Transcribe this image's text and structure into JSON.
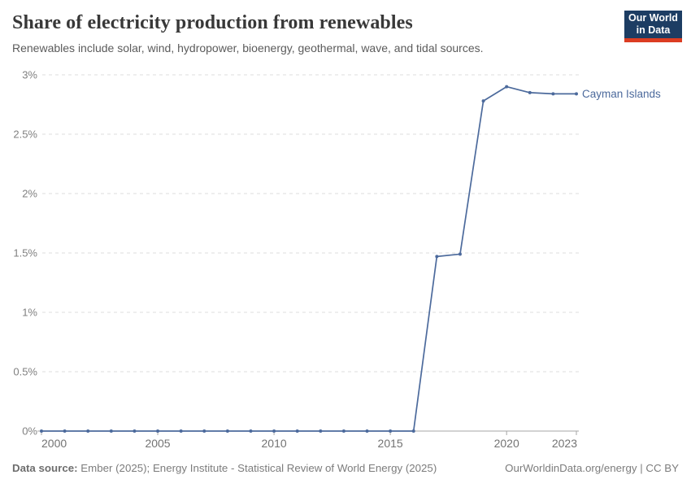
{
  "header": {
    "title": "Share of electricity production from renewables",
    "subtitle": "Renewables include solar, wind, hydropower, bioenergy, geothermal, wave, and tidal sources.",
    "logo": {
      "line1": "Our World",
      "line2": "in Data"
    }
  },
  "chart_data": {
    "type": "line",
    "title": "Share of electricity production from renewables",
    "x": [
      2000,
      2001,
      2002,
      2003,
      2004,
      2005,
      2006,
      2007,
      2008,
      2009,
      2010,
      2011,
      2012,
      2013,
      2014,
      2015,
      2016,
      2017,
      2018,
      2019,
      2020,
      2021,
      2022,
      2023
    ],
    "series": [
      {
        "name": "Cayman Islands",
        "color": "#4C6A9C",
        "values": [
          0,
          0,
          0,
          0,
          0,
          0,
          0,
          0,
          0,
          0,
          0,
          0,
          0,
          0,
          0,
          0,
          0,
          1.47,
          1.49,
          2.78,
          2.9,
          2.85,
          2.84,
          2.84
        ]
      }
    ],
    "xlabel": "",
    "ylabel": "",
    "xlim": [
      2000,
      2023
    ],
    "ylim": [
      0,
      3
    ],
    "yticks": [
      {
        "value": 0,
        "label": "0%"
      },
      {
        "value": 0.5,
        "label": "0.5%"
      },
      {
        "value": 1,
        "label": "1%"
      },
      {
        "value": 1.5,
        "label": "1.5%"
      },
      {
        "value": 2,
        "label": "2%"
      },
      {
        "value": 2.5,
        "label": "2.5%"
      },
      {
        "value": 3,
        "label": "3%"
      }
    ],
    "xticks": [
      {
        "value": 2000,
        "label": "2000"
      },
      {
        "value": 2005,
        "label": "2005"
      },
      {
        "value": 2010,
        "label": "2010"
      },
      {
        "value": 2015,
        "label": "2015"
      },
      {
        "value": 2020,
        "label": "2020"
      },
      {
        "value": 2023,
        "label": "2023"
      }
    ],
    "grid": "horizontal-dashed",
    "legend_position": "end-of-line-label",
    "entity_label": "Cayman Islands"
  },
  "footer": {
    "datasource_label": "Data source:",
    "datasource": " Ember (2025); Energy Institute - Statistical Review of World Energy (2025)",
    "credit": "OurWorldinData.org/energy | CC BY"
  },
  "colors": {
    "line": "#4C6A9C",
    "grid": "#dddddd",
    "axis": "#a5a5a5",
    "y_tick_text": "#808080",
    "x_tick_text": "#737373",
    "logo_bg": "#1d3d63",
    "logo_red": "#dc3d22"
  }
}
